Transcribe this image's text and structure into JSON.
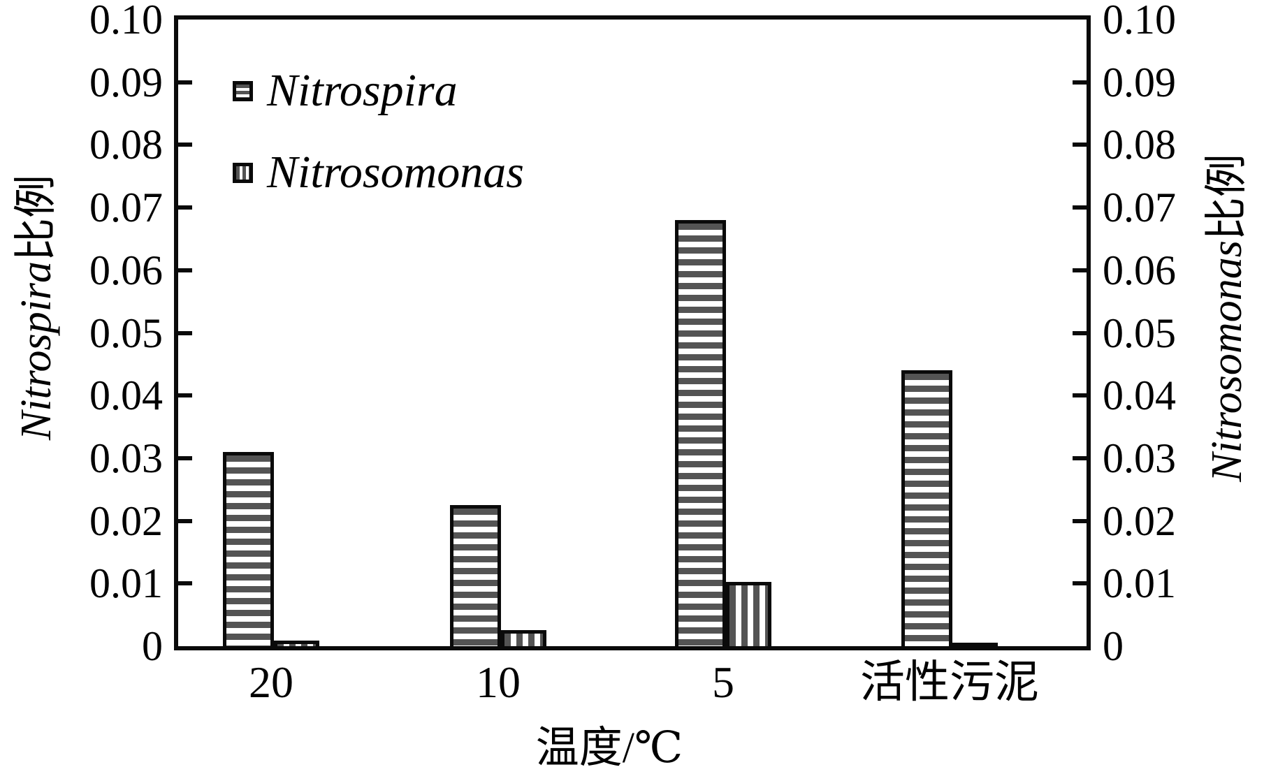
{
  "chart_data": {
    "type": "bar",
    "title": "",
    "categories": [
      "20",
      "10",
      "5",
      "活性污泥"
    ],
    "xlabel": "温度/℃",
    "ylabel_left": {
      "latin": "Nitrospira",
      "cjk": "比例"
    },
    "ylabel_right": {
      "latin": "Nitrosomonas",
      "cjk": "比例"
    },
    "ylim": [
      0,
      0.1
    ],
    "ytick_step": 0.01,
    "yticks": [
      "0.10",
      "0.09",
      "0.08",
      "0.07",
      "0.06",
      "0.05",
      "0.04",
      "0.03",
      "0.02",
      "0.01",
      "0"
    ],
    "series": [
      {
        "name": "Nitrospira",
        "pattern": "horizontal-stripes",
        "values": [
          0.031,
          0.0225,
          0.068,
          0.044
        ]
      },
      {
        "name": "Nitrosomonas",
        "pattern": "vertical-stripes",
        "values": [
          0.0009,
          0.0026,
          0.0103,
          0.0005
        ]
      }
    ],
    "legend_position": "top-left-inside",
    "grid": false
  },
  "colors": {
    "stripe_dark": "#545454",
    "outline": "#0a0a0a",
    "background": "#ffffff",
    "text": "#000000"
  }
}
